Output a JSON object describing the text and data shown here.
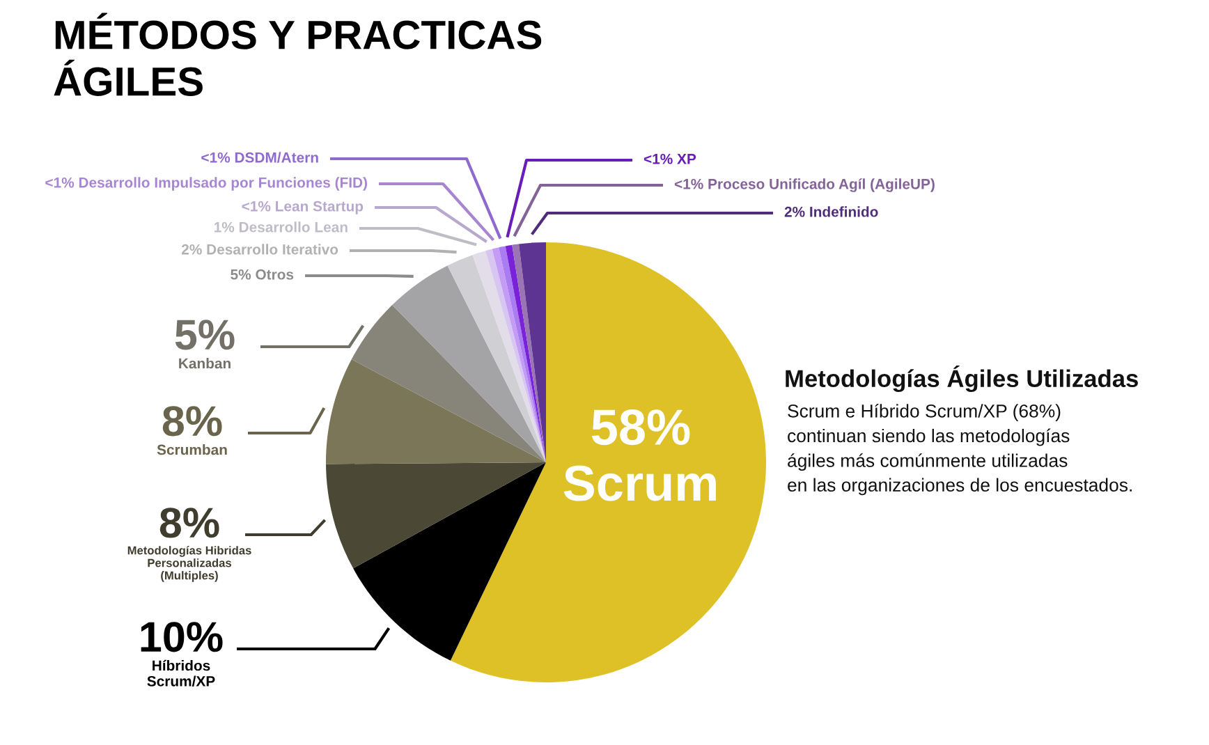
{
  "chart_data": {
    "type": "pie",
    "title": "MÉTODOS Y PRACTICAS\nÁGILES",
    "categories": [
      "Scrum",
      "Híbridos\nScrum/XP",
      "Metodologías Hibridas\nPersonalizadas\n(Multiples)",
      "Scrumban",
      "Kanban",
      "Otros",
      "Desarrollo Iterativo",
      "Desarrollo Lean",
      "Lean Startup",
      "Desarrollo Impulsado por Funciones (FID)",
      "DSDM/Atern",
      "XP",
      "Proceso Unificado Agíl (AgileUP)",
      "Indefinido"
    ],
    "values": [
      58,
      10,
      8,
      8,
      5,
      5,
      2,
      1,
      0.5,
      0.5,
      0.5,
      0.5,
      0.5,
      2
    ],
    "value_labels": [
      "58%",
      "10%",
      "8%",
      "8%",
      "5%",
      "5%",
      "2%",
      "1%",
      "<1%",
      "<1%",
      "<1%",
      "<1%",
      "<1%",
      "2%"
    ],
    "colors": [
      "#dec127",
      "#000000",
      "#4b4836",
      "#7b7658",
      "#878579",
      "#a4a3a5",
      "#d0cfd3",
      "#e2dde8",
      "#d8c6f2",
      "#c49cf6",
      "#a97cf2",
      "#7a22d8",
      "#9a74b3",
      "#5e3492"
    ],
    "annotations": [
      "Metodologías Ágiles Utilizadas",
      "Scrum e Híbrido Scrum/XP (68%)\ncontinuan siendo las metodologías\nágiles más comúnmente utilizadas\nen las organizaciones de los encuestados."
    ]
  }
}
